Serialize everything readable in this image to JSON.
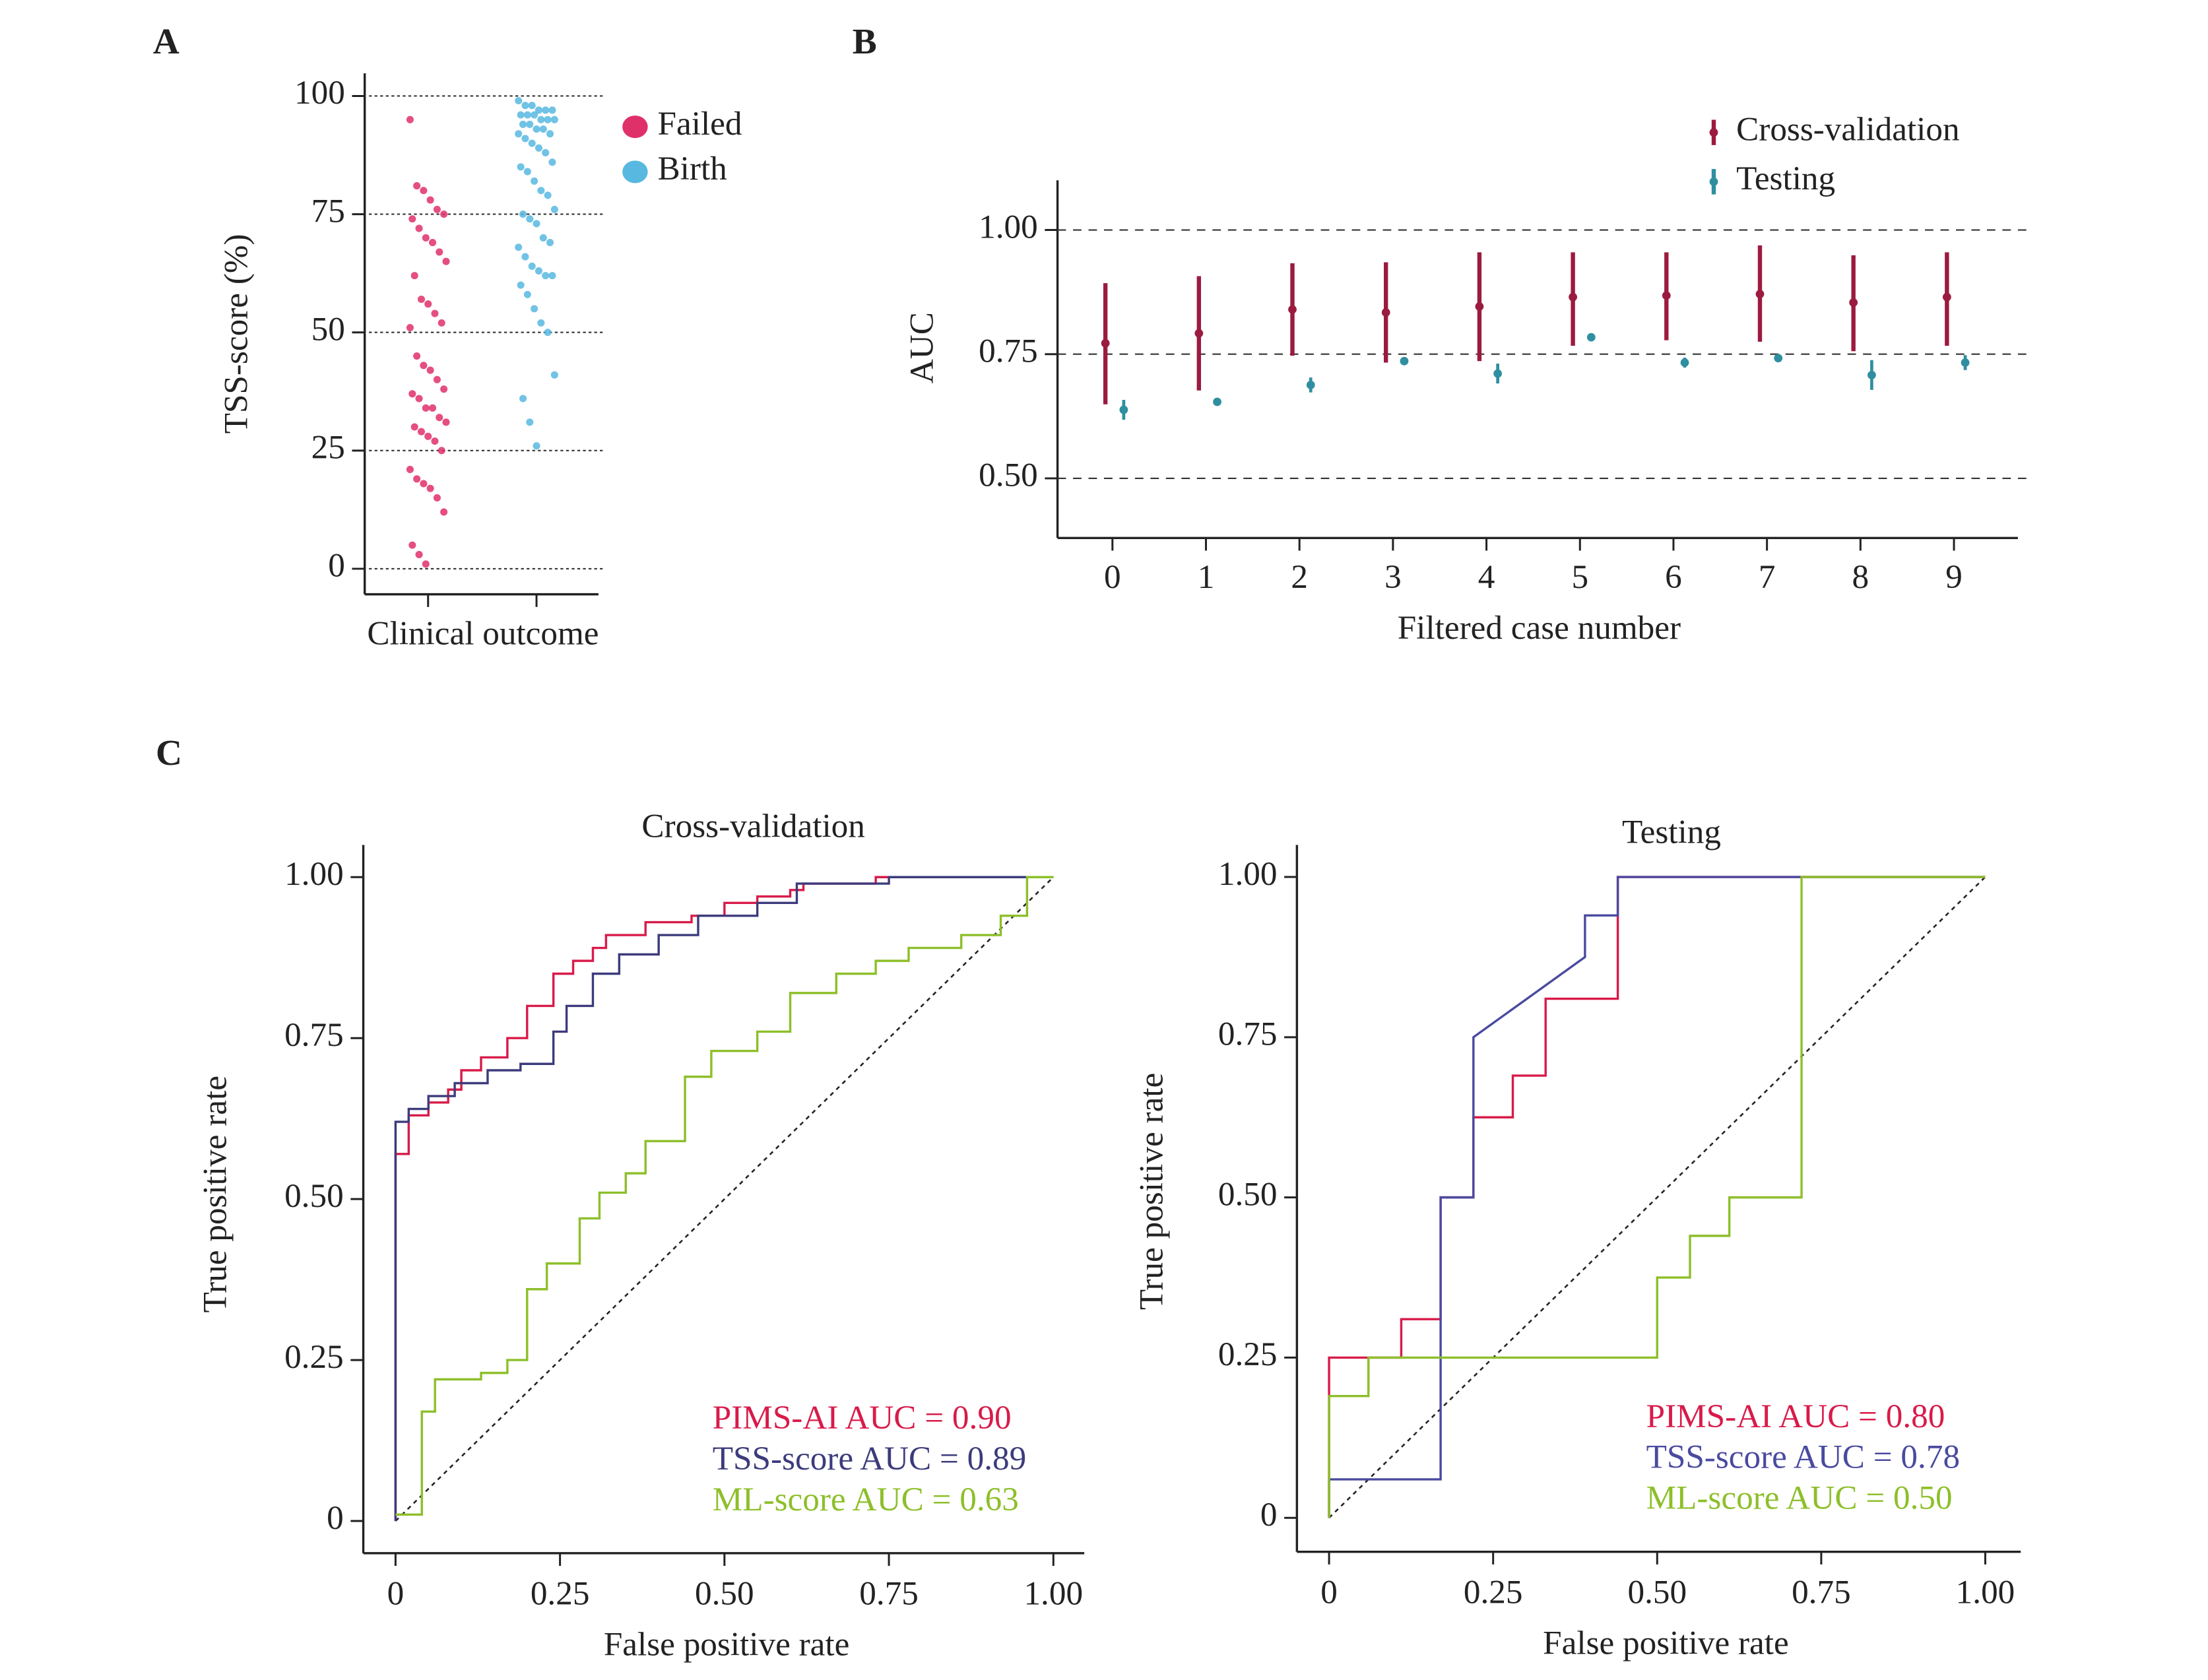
{
  "chart_data": [
    {
      "type": "strip",
      "label": "A",
      "ylabel": "TSS-score (%)",
      "xlabel": "Clinical outcome",
      "categories": [
        null,
        null
      ],
      "ylim": [
        -5.4,
        104.8
      ],
      "yticks": [
        0,
        25,
        50,
        75,
        100
      ],
      "grid": true,
      "series": [
        {
          "name": "Failed",
          "color": "#e0306a",
          "values": [
            95,
            81,
            80,
            78,
            76,
            75,
            74,
            72,
            70,
            69,
            67,
            65,
            62,
            57,
            56,
            54,
            52,
            51,
            45,
            43,
            42,
            40,
            38,
            37,
            36,
            34,
            34,
            32,
            31,
            30,
            29,
            28,
            27,
            25,
            21,
            19,
            18,
            17,
            15,
            12,
            5,
            3,
            1
          ]
        },
        {
          "name": "Birth",
          "color": "#58b8e0",
          "values": [
            99,
            98,
            98,
            97,
            97,
            97,
            96,
            96,
            96,
            95,
            95,
            95,
            94,
            94,
            93,
            93,
            92,
            92,
            91,
            90,
            89,
            88,
            86,
            85,
            84,
            82,
            80,
            79,
            76,
            75,
            74,
            73,
            70,
            69,
            68,
            66,
            64,
            63,
            62,
            62,
            60,
            58,
            55,
            52,
            50,
            41,
            36,
            31,
            26
          ]
        }
      ]
    },
    {
      "type": "errorbar",
      "label": "B",
      "ylabel": "AUC",
      "xlabel": "Filtered case number",
      "categories": [
        "0",
        "1",
        "2",
        "3",
        "4",
        "5",
        "6",
        "7",
        "8",
        "9"
      ],
      "ylim": [
        0.38,
        1.1
      ],
      "yticks": [
        {
          "value": 0.5,
          "label": "0.50"
        },
        {
          "value": 0.75,
          "label": "0.75"
        },
        {
          "value": 1,
          "label": "1.00"
        }
      ],
      "grid": true,
      "series": [
        {
          "name": "Cross-validation",
          "color": "#9b1b3f",
          "values": [
            0.772,
            0.792,
            0.84,
            0.834,
            0.846,
            0.865,
            0.868,
            0.871,
            0.854,
            0.865
          ],
          "lower": [
            0.649,
            0.677,
            0.747,
            0.733,
            0.736,
            0.767,
            0.778,
            0.775,
            0.756,
            0.767
          ],
          "upper": [
            0.893,
            0.907,
            0.933,
            0.935,
            0.955,
            0.955,
            0.955,
            0.969,
            0.949,
            0.955
          ]
        },
        {
          "name": "Testing",
          "color": "#2f8fa0",
          "values": [
            0.638,
            0.654,
            0.688,
            0.736,
            0.711,
            0.784,
            0.733,
            0.742,
            0.708,
            0.733
          ],
          "lower": [
            0.618,
            0.65,
            0.673,
            0.728,
            0.691,
            0.776,
            0.723,
            0.734,
            0.678,
            0.718
          ],
          "upper": [
            0.658,
            0.658,
            0.703,
            0.744,
            0.731,
            0.792,
            0.743,
            0.75,
            0.738,
            0.748
          ]
        }
      ]
    },
    {
      "type": "roc",
      "label": "C",
      "title": "Cross-validation",
      "xlabel": "False positive rate",
      "ylabel": "True positive rate",
      "xlim": [
        -0.049,
        1.047
      ],
      "ylim": [
        -0.05,
        1.05
      ],
      "xticks": [
        0,
        {
          "value": 0.25,
          "label": "0.25"
        },
        {
          "value": 0.5,
          "label": "0.50"
        },
        {
          "value": 0.75,
          "label": "0.75"
        },
        {
          "value": 1,
          "label": "1.00"
        }
      ],
      "yticks": [
        0,
        {
          "value": 0.25,
          "label": "0.25"
        },
        {
          "value": 0.5,
          "label": "0.50"
        },
        {
          "value": 0.75,
          "label": "0.75"
        },
        {
          "value": 1,
          "label": "1.00"
        }
      ],
      "series": [
        {
          "name": "PIMS-AI AUC = 0.90",
          "color": "#d81b4a",
          "x": [
            0,
            0,
            0.02,
            0.02,
            0.05,
            0.05,
            0.08,
            0.08,
            0.1,
            0.1,
            0.13,
            0.13,
            0.17,
            0.17,
            0.2,
            0.2,
            0.24,
            0.24,
            0.27,
            0.27,
            0.3,
            0.3,
            0.32,
            0.32,
            0.38,
            0.38,
            0.45,
            0.45,
            0.5,
            0.5,
            0.55,
            0.55,
            0.6,
            0.6,
            0.62,
            0.62,
            0.73,
            0.73,
            0.75,
            0.75,
            1
          ],
          "y": [
            0,
            0.57,
            0.57,
            0.63,
            0.63,
            0.65,
            0.65,
            0.67,
            0.67,
            0.7,
            0.7,
            0.72,
            0.72,
            0.75,
            0.75,
            0.8,
            0.8,
            0.85,
            0.85,
            0.87,
            0.87,
            0.89,
            0.89,
            0.91,
            0.91,
            0.93,
            0.93,
            0.94,
            0.94,
            0.96,
            0.96,
            0.97,
            0.97,
            0.98,
            0.98,
            0.99,
            0.99,
            1,
            1,
            1,
            1
          ]
        },
        {
          "name": "TSS-score AUC = 0.89",
          "color": "#3c3b7c",
          "x": [
            0,
            0,
            0.02,
            0.02,
            0.05,
            0.05,
            0.09,
            0.09,
            0.14,
            0.14,
            0.19,
            0.19,
            0.24,
            0.24,
            0.26,
            0.26,
            0.3,
            0.3,
            0.34,
            0.34,
            0.4,
            0.4,
            0.46,
            0.46,
            0.55,
            0.55,
            0.61,
            0.61,
            0.75,
            0.75,
            1
          ],
          "y": [
            0,
            0.62,
            0.62,
            0.64,
            0.64,
            0.66,
            0.66,
            0.68,
            0.68,
            0.7,
            0.7,
            0.71,
            0.71,
            0.76,
            0.76,
            0.8,
            0.8,
            0.85,
            0.85,
            0.88,
            0.88,
            0.91,
            0.91,
            0.94,
            0.94,
            0.96,
            0.96,
            0.99,
            0.99,
            1,
            1
          ]
        },
        {
          "name": "ML-score AUC = 0.63",
          "color": "#8dbf2a",
          "x": [
            0,
            0.04,
            0.04,
            0.06,
            0.06,
            0.13,
            0.13,
            0.17,
            0.17,
            0.2,
            0.2,
            0.23,
            0.23,
            0.28,
            0.28,
            0.31,
            0.31,
            0.35,
            0.35,
            0.38,
            0.38,
            0.44,
            0.44,
            0.48,
            0.48,
            0.55,
            0.55,
            0.6,
            0.6,
            0.67,
            0.67,
            0.73,
            0.73,
            0.78,
            0.78,
            0.86,
            0.86,
            0.92,
            0.92,
            0.96,
            0.96,
            1
          ],
          "y": [
            0.01,
            0.01,
            0.17,
            0.17,
            0.22,
            0.22,
            0.23,
            0.23,
            0.25,
            0.25,
            0.36,
            0.36,
            0.4,
            0.4,
            0.47,
            0.47,
            0.51,
            0.51,
            0.54,
            0.54,
            0.59,
            0.59,
            0.69,
            0.69,
            0.73,
            0.73,
            0.76,
            0.76,
            0.82,
            0.82,
            0.85,
            0.85,
            0.87,
            0.87,
            0.89,
            0.89,
            0.91,
            0.91,
            0.94,
            0.94,
            1,
            1
          ]
        }
      ]
    },
    {
      "type": "roc",
      "title": "Testing",
      "xlabel": "False positive rate",
      "ylabel": "True positive rate",
      "xlim": [
        -0.049,
        1.054
      ],
      "ylim": [
        -0.053,
        1.05
      ],
      "xticks": [
        0,
        {
          "value": 0.25,
          "label": "0.25"
        },
        {
          "value": 0.5,
          "label": "0.50"
        },
        {
          "value": 0.75,
          "label": "0.75"
        },
        {
          "value": 1,
          "label": "1.00"
        }
      ],
      "yticks": [
        0,
        {
          "value": 0.25,
          "label": "0.25"
        },
        {
          "value": 0.5,
          "label": "0.50"
        },
        {
          "value": 0.75,
          "label": "0.75"
        },
        {
          "value": 1,
          "label": "1.00"
        }
      ],
      "series": [
        {
          "name": "PIMS-AI AUC = 0.80",
          "color": "#d81b4a",
          "x": [
            0,
            0,
            0.11,
            0.11,
            0.17,
            0.17,
            0.22,
            0.22,
            0.28,
            0.28,
            0.33,
            0.33,
            0.44,
            0.44,
            1
          ],
          "y": [
            0,
            0.25,
            0.25,
            0.31,
            0.31,
            0.5,
            0.5,
            0.625,
            0.625,
            0.69,
            0.69,
            0.81,
            0.81,
            1,
            1
          ]
        },
        {
          "name": "TSS-score AUC = 0.78",
          "color": "#4a4aa0",
          "x": [
            0,
            0,
            0.17,
            0.17,
            0.22,
            0.22,
            0.39,
            0.39,
            0.44,
            0.44,
            1
          ],
          "y": [
            0,
            0.06,
            0.06,
            0.5,
            0.5,
            0.75,
            0.875,
            0.94,
            0.94,
            1,
            1
          ]
        },
        {
          "name": "ML-score AUC = 0.50",
          "color": "#8dbf2a",
          "x": [
            0,
            0,
            0.06,
            0.06,
            0.5,
            0.5,
            0.55,
            0.55,
            0.61,
            0.61,
            0.72,
            0.72,
            1
          ],
          "y": [
            0,
            0.19,
            0.19,
            0.25,
            0.25,
            0.375,
            0.375,
            0.44,
            0.44,
            0.5,
            0.5,
            1,
            1
          ]
        }
      ]
    }
  ]
}
